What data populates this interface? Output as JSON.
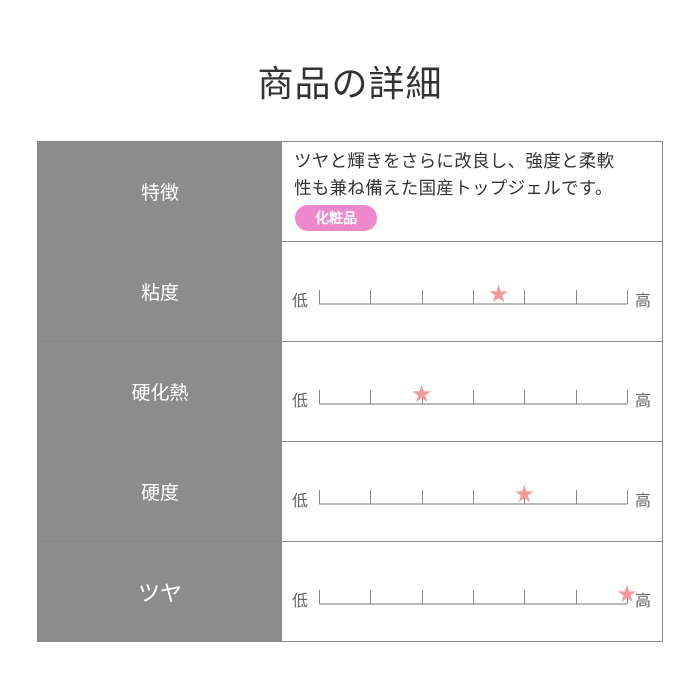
{
  "title": "商品の詳細",
  "rows": [
    {
      "label": "特徴",
      "description": "ツヤと輝きをさらに改良し、強度と柔軟性も兼ね備えた国産トップジェルです。",
      "description_line1": "ツヤと輝きをさらに改良し、強度と柔軟",
      "description_line2": "性も兼ね備えた国産トップジェルです。",
      "badge": "化粧品",
      "badge_color": "#ee88cc"
    },
    {
      "label": "粘度",
      "low": "低",
      "high": "高",
      "level": 3.5,
      "max": 6
    },
    {
      "label": "硬化熱",
      "low": "低",
      "high": "高",
      "level": 2,
      "max": 6
    },
    {
      "label": "硬度",
      "low": "低",
      "high": "高",
      "level": 4,
      "max": 6
    },
    {
      "label": "ツヤ",
      "low": "低",
      "high": "高",
      "level": 6,
      "max": 6
    }
  ],
  "star_color": "#f59a9a"
}
